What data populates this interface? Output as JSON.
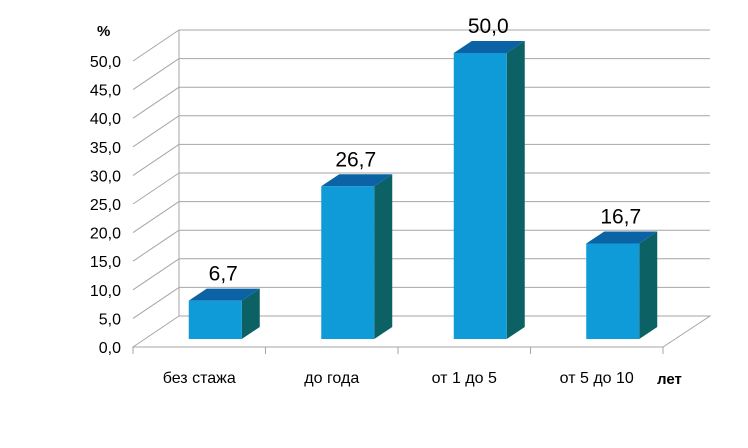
{
  "chart_data": {
    "type": "bar",
    "categories": [
      "без стажа",
      "до года",
      "от 1 до 5",
      "от 5 до 10"
    ],
    "values": [
      6.7,
      26.7,
      50.0,
      16.7
    ],
    "value_labels": [
      "6,7",
      "26,7",
      "50,0",
      "16,7"
    ],
    "y_ticks": [
      "0,0",
      "5,0",
      "10,0",
      "15,0",
      "20,0",
      "25,0",
      "30,0",
      "35,0",
      "40,0",
      "45,0",
      "50,0"
    ],
    "ylim": [
      0,
      50
    ],
    "ylabel": "%",
    "xlabel": "лет",
    "grid": true,
    "style": "3d",
    "colors": {
      "bar_front": "#0f9bd7",
      "bar_top": "#0b63a6",
      "bar_side": "#0b6163",
      "grid": "#a6a6a6"
    }
  }
}
